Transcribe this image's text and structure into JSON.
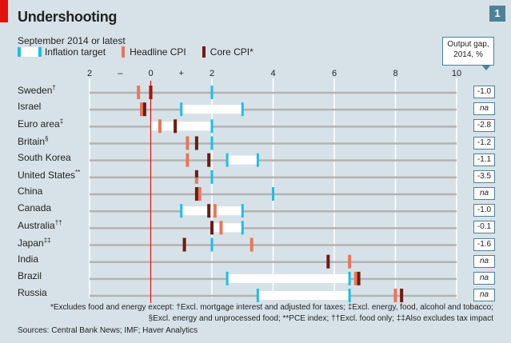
{
  "header": {
    "title": "Undershooting",
    "subtitle": "September 2014 or latest",
    "chart_number": "1"
  },
  "legend": {
    "target": "Inflation target",
    "headline": "Headline CPI",
    "core": "Core CPI*"
  },
  "output_gap_header": "Output gap, 2014, %",
  "colors": {
    "target": "#1ebde8",
    "headline": "#e8765a",
    "core": "#6e1b12",
    "zero_line": "#e3120b",
    "background": "#d6e2e8"
  },
  "chart_data": {
    "type": "range-dot",
    "title": "Undershooting",
    "subtitle": "September 2014 or latest",
    "xlim": [
      -2,
      10
    ],
    "x_ticks": [
      {
        "v": -2,
        "label": "2"
      },
      {
        "v": -1,
        "label": "–"
      },
      {
        "v": 0,
        "label": "0"
      },
      {
        "v": 1,
        "label": "+"
      },
      {
        "v": 2,
        "label": "2"
      },
      {
        "v": 4,
        "label": "4"
      },
      {
        "v": 6,
        "label": "6"
      },
      {
        "v": 8,
        "label": "8"
      },
      {
        "v": 10,
        "label": "10"
      }
    ],
    "gridlines": [
      -2,
      2,
      4,
      6,
      8,
      10
    ],
    "grid": true,
    "rows": [
      {
        "country": "Sweden",
        "mark": "†",
        "target": [
          2,
          2
        ],
        "headline": -0.4,
        "core": 0.0,
        "output_gap": "-1.0"
      },
      {
        "country": "Israel",
        "mark": "",
        "target": [
          1,
          3
        ],
        "headline": -0.3,
        "core": -0.2,
        "output_gap": "na"
      },
      {
        "country": "Euro area",
        "mark": "‡",
        "target": [
          0,
          2
        ],
        "headline": 0.3,
        "core": 0.8,
        "output_gap": "-2.8"
      },
      {
        "country": "Britain",
        "mark": "§",
        "target": [
          2,
          2
        ],
        "headline": 1.2,
        "core": 1.5,
        "output_gap": "-1.2"
      },
      {
        "country": "South Korea",
        "mark": "",
        "target": [
          2.5,
          3.5
        ],
        "headline": 1.2,
        "core": 1.9,
        "output_gap": "-1.1"
      },
      {
        "country": "United States",
        "mark": "**",
        "target": [
          2,
          2
        ],
        "headline": 1.5,
        "core": 1.5,
        "output_gap": "-3.5"
      },
      {
        "country": "China",
        "mark": "",
        "target": [
          4,
          4
        ],
        "headline": 1.6,
        "core": 1.5,
        "output_gap": "na"
      },
      {
        "country": "Canada",
        "mark": "",
        "target": [
          1,
          3
        ],
        "headline": 2.1,
        "core": 1.9,
        "output_gap": "-1.0"
      },
      {
        "country": "Australia",
        "mark": "††",
        "target": [
          2,
          3
        ],
        "headline": 2.3,
        "core": 2.0,
        "output_gap": "-0.1"
      },
      {
        "country": "Japan",
        "mark": "‡‡",
        "target": [
          2,
          2
        ],
        "headline": 3.3,
        "core": 1.1,
        "output_gap": "-1.6"
      },
      {
        "country": "India",
        "mark": "",
        "target": null,
        "headline": 6.5,
        "core": 5.8,
        "output_gap": "na"
      },
      {
        "country": "Brazil",
        "mark": "",
        "target": [
          2.5,
          6.5
        ],
        "headline": 6.7,
        "core": 6.8,
        "output_gap": "na"
      },
      {
        "country": "Russia",
        "mark": "",
        "target": [
          3.5,
          6.5
        ],
        "headline": 8.0,
        "core": 8.2,
        "output_gap": "na"
      }
    ]
  },
  "footnote": {
    "line1": "*Excludes food and energy except: †Excl. mortgage interest and adjusted for taxes; ‡Excl. energy, food, alcohol and tobacco;",
    "line2": "§Excl. energy and unprocessed food; **PCE index; ††Excl. food only; ‡‡Also excludes tax impact"
  },
  "sources": "Sources: Central Bank News; IMF; Haver Analytics"
}
